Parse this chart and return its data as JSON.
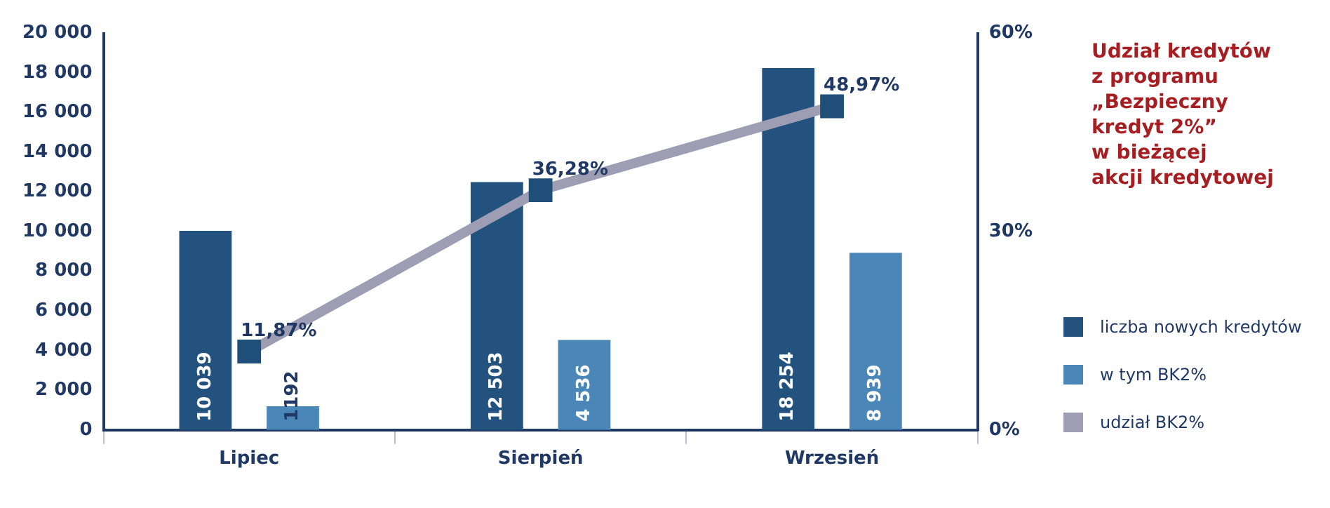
{
  "chart_data": {
    "type": "bar",
    "categories": [
      "Lipiec",
      "Sierpień",
      "Wrzesień"
    ],
    "series": [
      {
        "name": "liczba nowych kredytów",
        "color": "#24527f",
        "values": [
          10039,
          12503,
          18254
        ],
        "value_labels": [
          "10 039",
          "12 503",
          "18 254"
        ]
      },
      {
        "name": "w tym BK2%",
        "color": "#4a87b8",
        "values": [
          1192,
          4536,
          8939
        ],
        "value_labels": [
          "1192",
          "4 536",
          "8 939"
        ]
      },
      {
        "name": "udział BK2%",
        "type": "line",
        "axis": "y2",
        "color": "#9d9db4",
        "marker": "square",
        "values": [
          11.87,
          36.28,
          48.97
        ],
        "value_labels": [
          "11,87%",
          "36,28%",
          "48,97%"
        ]
      }
    ],
    "ylim": [
      0,
      20000
    ],
    "yticks": [
      {
        "value": 0,
        "label": "0"
      },
      {
        "value": 2000,
        "label": "2 000"
      },
      {
        "value": 4000,
        "label": "4 000"
      },
      {
        "value": 6000,
        "label": "6 000"
      },
      {
        "value": 8000,
        "label": "8 000"
      },
      {
        "value": 10000,
        "label": "10 000"
      },
      {
        "value": 12000,
        "label": "12 000"
      },
      {
        "value": 14000,
        "label": "14 000"
      },
      {
        "value": 16000,
        "label": "16 000"
      },
      {
        "value": 18000,
        "label": "18 000"
      },
      {
        "value": 20000,
        "label": "20 000"
      }
    ],
    "y2lim": [
      0,
      60
    ],
    "y2ticks": [
      {
        "value": 0,
        "label": "0%"
      },
      {
        "value": 30,
        "label": "30%"
      },
      {
        "value": 60,
        "label": "60%"
      }
    ],
    "grid": false,
    "legend": "right",
    "annotations": [
      "Udział kredytów\nz programu\n„Bezpieczny\nkredyt 2%”\nw bieżącej\nakcji kredytowej"
    ]
  }
}
